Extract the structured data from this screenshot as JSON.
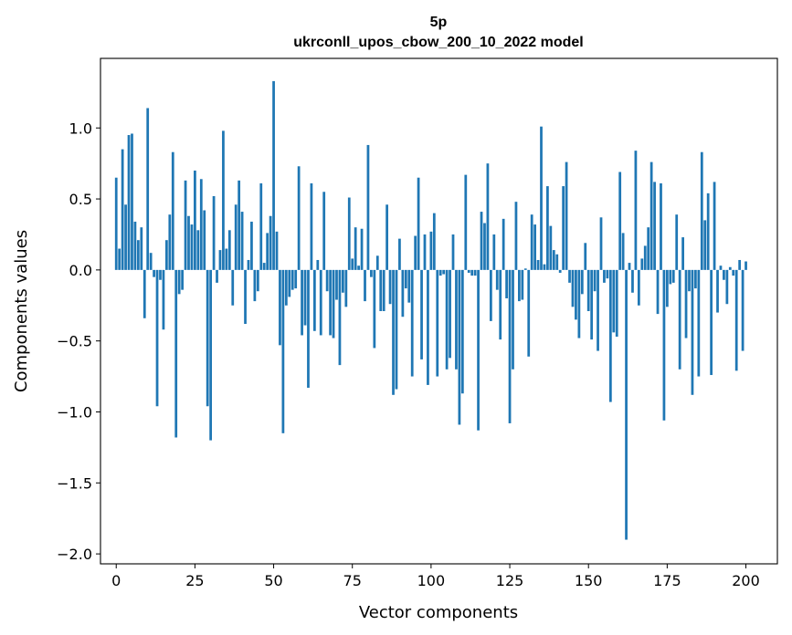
{
  "chart_data": {
    "type": "bar",
    "title_line1": "5p",
    "title_line2": "ukrconll_upos_cbow_200_10_2022 model",
    "xlabel": "Vector components",
    "ylabel": "Components values",
    "xlim": [
      -5,
      210
    ],
    "ylim": [
      -2.07,
      1.49
    ],
    "xticks": [
      0,
      25,
      50,
      75,
      100,
      125,
      150,
      175,
      200
    ],
    "xtick_labels": [
      "0",
      "25",
      "50",
      "75",
      "100",
      "125",
      "150",
      "175",
      "200"
    ],
    "yticks": [
      1.0,
      0.5,
      0.0,
      -0.5,
      -1.0,
      -1.5,
      -2.0
    ],
    "ytick_labels": [
      "1.0",
      "0.5",
      "0.0",
      "−0.5",
      "−1.0",
      "−1.5",
      "−2.0"
    ],
    "bar_color": "#1f77b4",
    "grid": false,
    "values": [
      0.65,
      0.15,
      0.85,
      0.46,
      0.95,
      0.96,
      0.34,
      0.21,
      0.3,
      -0.34,
      1.14,
      0.12,
      -0.05,
      -0.96,
      -0.07,
      -0.42,
      0.21,
      0.39,
      0.83,
      -1.18,
      -0.17,
      -0.14,
      0.63,
      0.38,
      0.32,
      0.7,
      0.28,
      0.64,
      0.42,
      -0.96,
      -1.2,
      0.52,
      -0.09,
      0.14,
      0.98,
      0.15,
      0.28,
      -0.25,
      0.46,
      0.63,
      0.41,
      -0.38,
      0.07,
      0.34,
      -0.22,
      -0.15,
      0.61,
      0.05,
      0.26,
      0.38,
      1.33,
      0.27,
      -0.53,
      -1.15,
      -0.25,
      -0.19,
      -0.14,
      -0.13,
      0.73,
      -0.46,
      -0.39,
      -0.83,
      0.61,
      -0.43,
      0.07,
      -0.46,
      0.55,
      -0.15,
      -0.46,
      -0.48,
      -0.21,
      -0.67,
      -0.16,
      -0.26,
      0.51,
      0.08,
      0.3,
      0.03,
      0.29,
      -0.22,
      0.88,
      -0.05,
      -0.55,
      0.1,
      -0.29,
      -0.29,
      0.46,
      -0.24,
      -0.88,
      -0.84,
      0.22,
      -0.33,
      -0.13,
      -0.23,
      -0.75,
      0.24,
      0.65,
      -0.63,
      0.25,
      -0.81,
      0.27,
      0.4,
      -0.75,
      -0.04,
      -0.03,
      -0.7,
      -0.62,
      0.25,
      -0.7,
      -1.09,
      -0.87,
      0.67,
      -0.02,
      -0.04,
      -0.04,
      -1.13,
      0.41,
      0.33,
      0.75,
      -0.36,
      0.25,
      -0.14,
      -0.49,
      0.36,
      -0.2,
      -1.08,
      -0.7,
      0.48,
      -0.22,
      -0.21,
      0.01,
      -0.61,
      0.39,
      0.32,
      0.07,
      1.01,
      0.04,
      0.59,
      0.31,
      0.14,
      0.11,
      -0.02,
      0.59,
      0.76,
      -0.09,
      -0.26,
      -0.35,
      -0.48,
      -0.17,
      0.19,
      -0.29,
      -0.49,
      -0.15,
      -0.57,
      0.37,
      -0.09,
      -0.06,
      -0.93,
      -0.44,
      -0.47,
      0.69,
      0.26,
      -1.9,
      0.05,
      -0.16,
      0.84,
      -0.25,
      0.08,
      0.17,
      0.3,
      0.76,
      0.62,
      -0.31,
      0.61,
      -1.06,
      -0.26,
      -0.1,
      -0.09,
      0.39,
      -0.7,
      0.23,
      -0.48,
      -0.15,
      -0.88,
      -0.13,
      -0.75,
      0.83,
      0.35,
      0.54,
      -0.74,
      0.62,
      -0.3,
      0.03,
      -0.07,
      -0.24,
      0.02,
      -0.04,
      -0.71,
      0.07,
      -0.57,
      0.06
    ]
  }
}
